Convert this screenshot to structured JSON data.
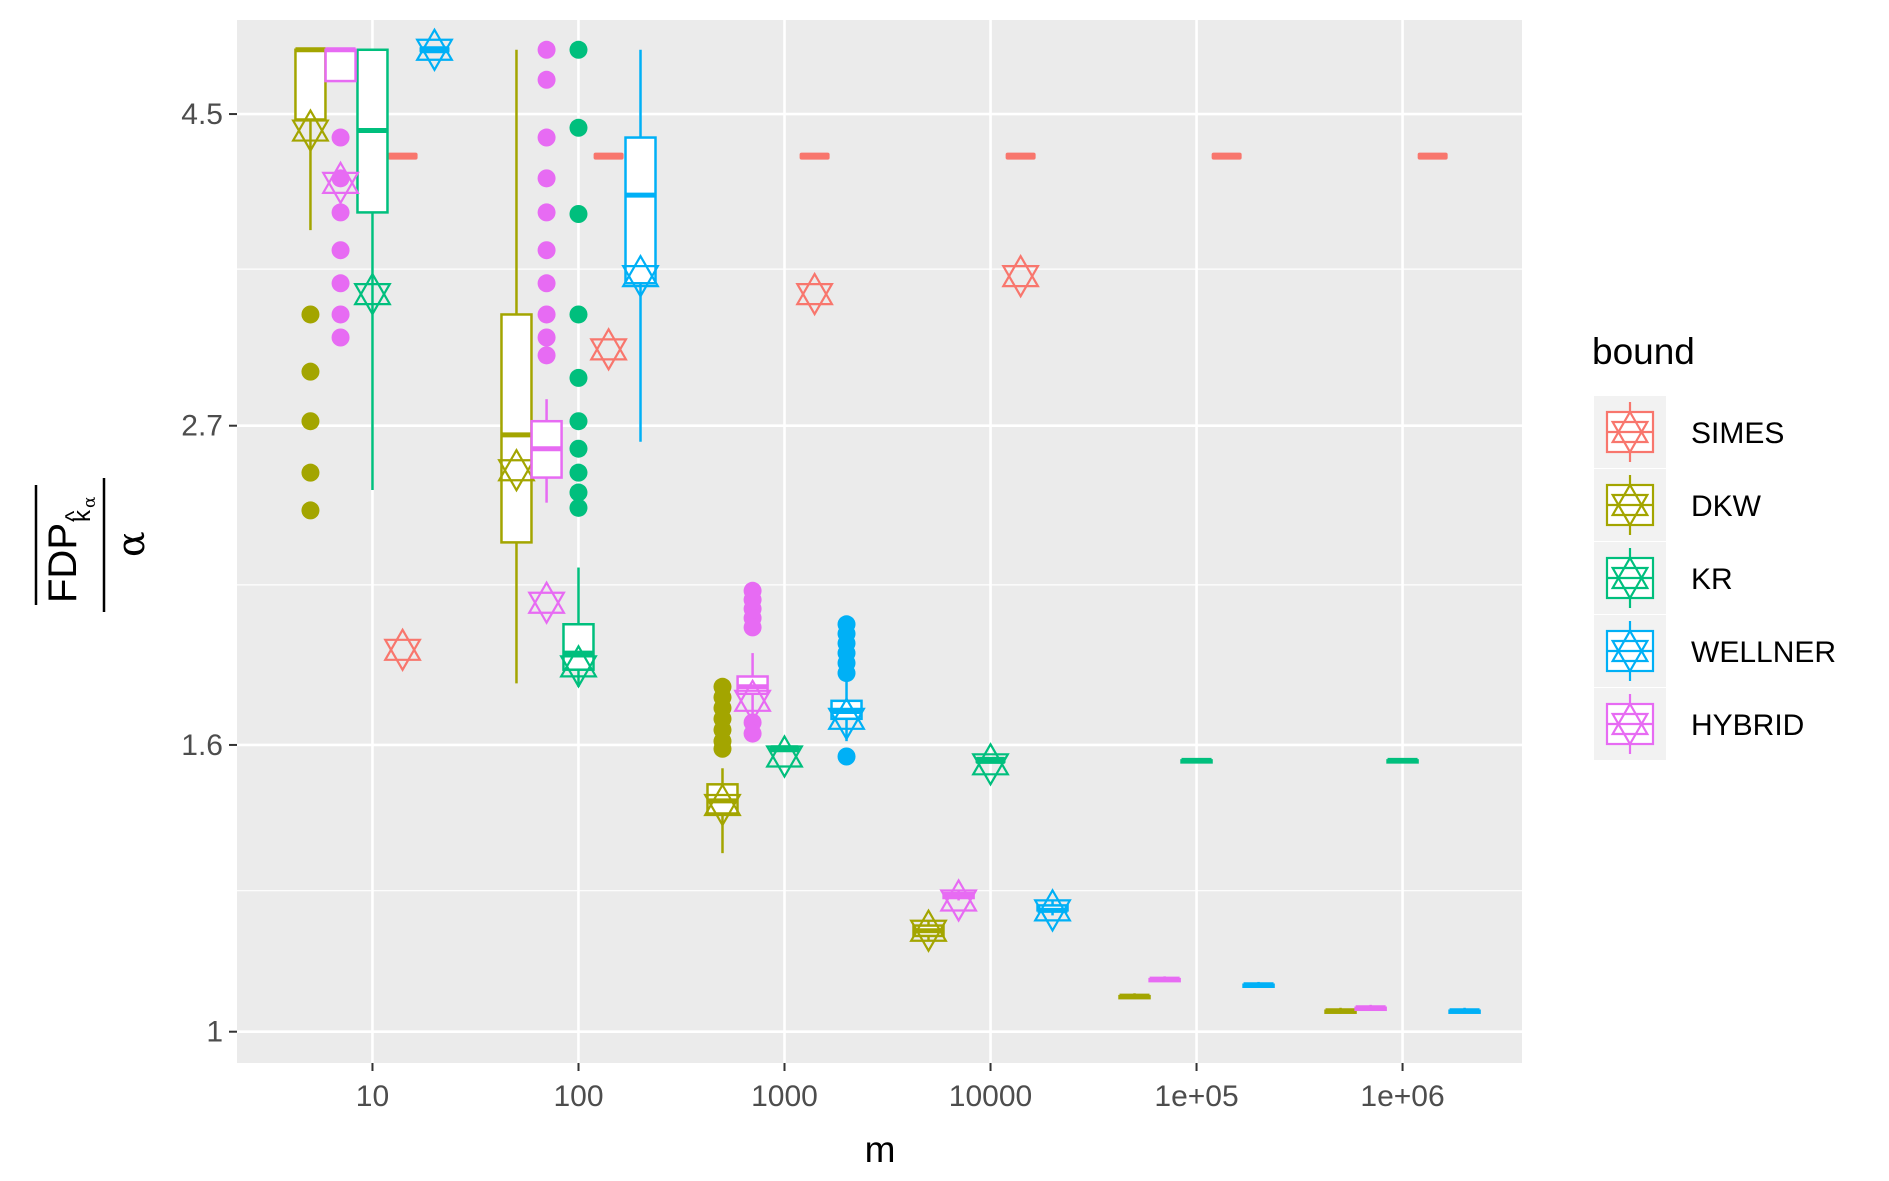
{
  "chart_data": {
    "type": "boxplot",
    "x_scale": "log10",
    "y_scale": "log",
    "xlabel": "m",
    "ylabel": {
      "numerator": "FDP",
      "subscript": "k",
      "subsubscript": "α",
      "hat": "^",
      "denominator": "α"
    },
    "x_ticks": [
      {
        "value": 10,
        "label": "10"
      },
      {
        "value": 100,
        "label": "100"
      },
      {
        "value": 1000,
        "label": "1000"
      },
      {
        "value": 10000,
        "label": "10000"
      },
      {
        "value": 100000,
        "label": "1e+05"
      },
      {
        "value": 1000000,
        "label": "1e+06"
      }
    ],
    "y_ticks": [
      {
        "value": 1,
        "label": "1"
      },
      {
        "value": 1.6,
        "label": "1.6"
      },
      {
        "value": 2.7,
        "label": "2.7"
      },
      {
        "value": 4.5,
        "label": "4.5"
      }
    ],
    "y_minor": [
      1.26,
      2.08,
      3.49
    ],
    "xlim": [
      2.2,
      3800000
    ],
    "ylim": [
      0.95,
      5.25
    ],
    "legend": {
      "title": "bound",
      "position": "right",
      "entries": [
        {
          "name": "SIMES",
          "color": "#F8766D"
        },
        {
          "name": "DKW",
          "color": "#A3A500"
        },
        {
          "name": "KR",
          "color": "#00BF7D"
        },
        {
          "name": "WELLNER",
          "color": "#00B0F6"
        },
        {
          "name": "HYBRID",
          "color": "#E76BF3"
        }
      ]
    },
    "series": [
      {
        "name": "SIMES",
        "color": "#F8766D",
        "boxes": [
          {
            "x": 14,
            "q1": 4.2,
            "median": 4.2,
            "q3": 4.2,
            "lo": 4.2,
            "hi": 4.2
          },
          {
            "x": 140,
            "q1": 4.2,
            "median": 4.2,
            "q3": 4.2,
            "lo": 4.2,
            "hi": 4.2
          },
          {
            "x": 1400,
            "q1": 4.2,
            "median": 4.2,
            "q3": 4.2,
            "lo": 4.2,
            "hi": 4.2
          },
          {
            "x": 14000,
            "q1": 4.2,
            "median": 4.2,
            "q3": 4.2,
            "lo": 4.2,
            "hi": 4.2
          },
          {
            "x": 140000,
            "q1": 4.2,
            "median": 4.2,
            "q3": 4.2,
            "lo": 4.2,
            "hi": 4.2
          },
          {
            "x": 1400000,
            "q1": 4.2,
            "median": 4.2,
            "q3": 4.2,
            "lo": 4.2,
            "hi": 4.2
          }
        ],
        "outliers": [],
        "means": [
          {
            "x": 14,
            "y": 1.87
          },
          {
            "x": 140,
            "y": 3.06
          },
          {
            "x": 1400,
            "y": 3.35
          },
          {
            "x": 14000,
            "y": 3.45
          }
        ]
      },
      {
        "name": "DKW",
        "color": "#A3A500",
        "boxes": [
          {
            "x": 5,
            "q1": 4.46,
            "median": 5.0,
            "q3": 5.0,
            "lo": 3.72,
            "hi": 5.0
          },
          {
            "x": 50,
            "q1": 2.23,
            "median": 2.66,
            "q3": 3.24,
            "lo": 1.77,
            "hi": 5.0
          },
          {
            "x": 500,
            "q1": 1.43,
            "median": 1.46,
            "q3": 1.5,
            "lo": 1.34,
            "hi": 1.54
          },
          {
            "x": 5000,
            "q1": 1.17,
            "median": 1.18,
            "q3": 1.19,
            "lo": 1.16,
            "hi": 1.2
          },
          {
            "x": 50000,
            "q1": 1.06,
            "median": 1.06,
            "q3": 1.06,
            "lo": 1.055,
            "hi": 1.065
          },
          {
            "x": 500000,
            "q1": 1.035,
            "median": 1.035,
            "q3": 1.035,
            "lo": 1.03,
            "hi": 1.04
          }
        ],
        "outliers": [
          {
            "x": 5,
            "y": 3.24
          },
          {
            "x": 5,
            "y": 2.95
          },
          {
            "x": 5,
            "y": 2.72
          },
          {
            "x": 5,
            "y": 2.5
          },
          {
            "x": 5,
            "y": 2.35
          },
          {
            "x": 500,
            "y": 1.76
          },
          {
            "x": 500,
            "y": 1.73
          },
          {
            "x": 500,
            "y": 1.7
          },
          {
            "x": 500,
            "y": 1.67
          },
          {
            "x": 500,
            "y": 1.64
          },
          {
            "x": 500,
            "y": 1.61
          },
          {
            "x": 500,
            "y": 1.59
          }
        ],
        "means": [
          {
            "x": 5,
            "y": 4.38
          },
          {
            "x": 50,
            "y": 2.51
          },
          {
            "x": 500,
            "y": 1.45
          },
          {
            "x": 5000,
            "y": 1.18
          }
        ]
      },
      {
        "name": "KR",
        "color": "#00BF7D",
        "boxes": [
          {
            "x": 10,
            "q1": 3.83,
            "median": 4.38,
            "q3": 5.0,
            "lo": 2.43,
            "hi": 5.0
          },
          {
            "x": 100,
            "q1": 1.81,
            "median": 1.86,
            "q3": 1.95,
            "lo": 1.76,
            "hi": 2.14
          },
          {
            "x": 1000,
            "q1": 1.59,
            "median": 1.59,
            "q3": 1.59,
            "lo": 1.59,
            "hi": 1.59
          },
          {
            "x": 10000,
            "q1": 1.56,
            "median": 1.56,
            "q3": 1.56,
            "lo": 1.56,
            "hi": 1.56
          },
          {
            "x": 100000,
            "q1": 1.56,
            "median": 1.56,
            "q3": 1.56,
            "lo": 1.555,
            "hi": 1.565
          },
          {
            "x": 1000000,
            "q1": 1.56,
            "median": 1.56,
            "q3": 1.56,
            "lo": 1.555,
            "hi": 1.565
          }
        ],
        "outliers": [
          {
            "x": 100,
            "y": 5.0
          },
          {
            "x": 100,
            "y": 4.4
          },
          {
            "x": 100,
            "y": 3.82
          },
          {
            "x": 100,
            "y": 3.24
          },
          {
            "x": 100,
            "y": 2.92
          },
          {
            "x": 100,
            "y": 2.72
          },
          {
            "x": 100,
            "y": 2.6
          },
          {
            "x": 100,
            "y": 2.5
          },
          {
            "x": 100,
            "y": 2.42
          },
          {
            "x": 100,
            "y": 2.36
          }
        ],
        "means": [
          {
            "x": 10,
            "y": 3.35
          },
          {
            "x": 100,
            "y": 1.82
          },
          {
            "x": 1000,
            "y": 1.57
          },
          {
            "x": 10000,
            "y": 1.55
          }
        ]
      },
      {
        "name": "WELLNER",
        "color": "#00B0F6",
        "boxes": [
          {
            "x": 20,
            "q1": 5.0,
            "median": 5.0,
            "q3": 5.0,
            "lo": 5.0,
            "hi": 5.0
          },
          {
            "x": 200,
            "q1": 3.41,
            "median": 3.94,
            "q3": 4.33,
            "lo": 2.63,
            "hi": 5.0
          },
          {
            "x": 2000,
            "q1": 1.67,
            "median": 1.69,
            "q3": 1.72,
            "lo": 1.61,
            "hi": 1.78
          },
          {
            "x": 20000,
            "q1": 1.22,
            "median": 1.22,
            "q3": 1.23,
            "lo": 1.21,
            "hi": 1.24
          },
          {
            "x": 200000,
            "q1": 1.08,
            "median": 1.08,
            "q3": 1.08,
            "lo": 1.075,
            "hi": 1.085
          },
          {
            "x": 2000000,
            "q1": 1.035,
            "median": 1.035,
            "q3": 1.035,
            "lo": 1.03,
            "hi": 1.04
          }
        ],
        "outliers": [
          {
            "x": 2000,
            "y": 1.95
          },
          {
            "x": 2000,
            "y": 1.92
          },
          {
            "x": 2000,
            "y": 1.89
          },
          {
            "x": 2000,
            "y": 1.86
          },
          {
            "x": 2000,
            "y": 1.83
          },
          {
            "x": 2000,
            "y": 1.8
          },
          {
            "x": 2000,
            "y": 1.57
          }
        ],
        "means": [
          {
            "x": 20,
            "y": 5.0
          },
          {
            "x": 200,
            "y": 3.45
          },
          {
            "x": 2000,
            "y": 1.67
          },
          {
            "x": 20000,
            "y": 1.22
          }
        ]
      },
      {
        "name": "HYBRID",
        "color": "#E76BF3",
        "boxes": [
          {
            "x": 7,
            "q1": 4.75,
            "median": 5.0,
            "q3": 5.0,
            "lo": 4.75,
            "hi": 5.0
          },
          {
            "x": 70,
            "q1": 2.48,
            "median": 2.6,
            "q3": 2.72,
            "lo": 2.38,
            "hi": 2.82
          },
          {
            "x": 700,
            "q1": 1.74,
            "median": 1.76,
            "q3": 1.79,
            "lo": 1.67,
            "hi": 1.86
          },
          {
            "x": 7000,
            "q1": 1.245,
            "median": 1.25,
            "q3": 1.255,
            "lo": 1.24,
            "hi": 1.26
          },
          {
            "x": 70000,
            "q1": 1.09,
            "median": 1.09,
            "q3": 1.09,
            "lo": 1.085,
            "hi": 1.095
          },
          {
            "x": 700000,
            "q1": 1.04,
            "median": 1.04,
            "q3": 1.04,
            "lo": 1.035,
            "hi": 1.045
          }
        ],
        "outliers": [
          {
            "x": 7,
            "y": 4.33
          },
          {
            "x": 7,
            "y": 4.05
          },
          {
            "x": 7,
            "y": 3.83
          },
          {
            "x": 7,
            "y": 3.6
          },
          {
            "x": 7,
            "y": 3.41
          },
          {
            "x": 7,
            "y": 3.24
          },
          {
            "x": 7,
            "y": 3.12
          },
          {
            "x": 70,
            "y": 5.0
          },
          {
            "x": 70,
            "y": 4.76
          },
          {
            "x": 70,
            "y": 4.33
          },
          {
            "x": 70,
            "y": 4.05
          },
          {
            "x": 70,
            "y": 3.83
          },
          {
            "x": 70,
            "y": 3.6
          },
          {
            "x": 70,
            "y": 3.41
          },
          {
            "x": 70,
            "y": 3.24
          },
          {
            "x": 70,
            "y": 3.12
          },
          {
            "x": 70,
            "y": 3.03
          },
          {
            "x": 700,
            "y": 2.06
          },
          {
            "x": 700,
            "y": 2.03
          },
          {
            "x": 700,
            "y": 2.0
          },
          {
            "x": 700,
            "y": 1.97
          },
          {
            "x": 700,
            "y": 1.94
          },
          {
            "x": 700,
            "y": 1.66
          },
          {
            "x": 700,
            "y": 1.63
          }
        ],
        "means": [
          {
            "x": 7,
            "y": 4.02
          },
          {
            "x": 70,
            "y": 2.02
          },
          {
            "x": 700,
            "y": 1.72
          },
          {
            "x": 7000,
            "y": 1.24
          }
        ]
      }
    ]
  }
}
